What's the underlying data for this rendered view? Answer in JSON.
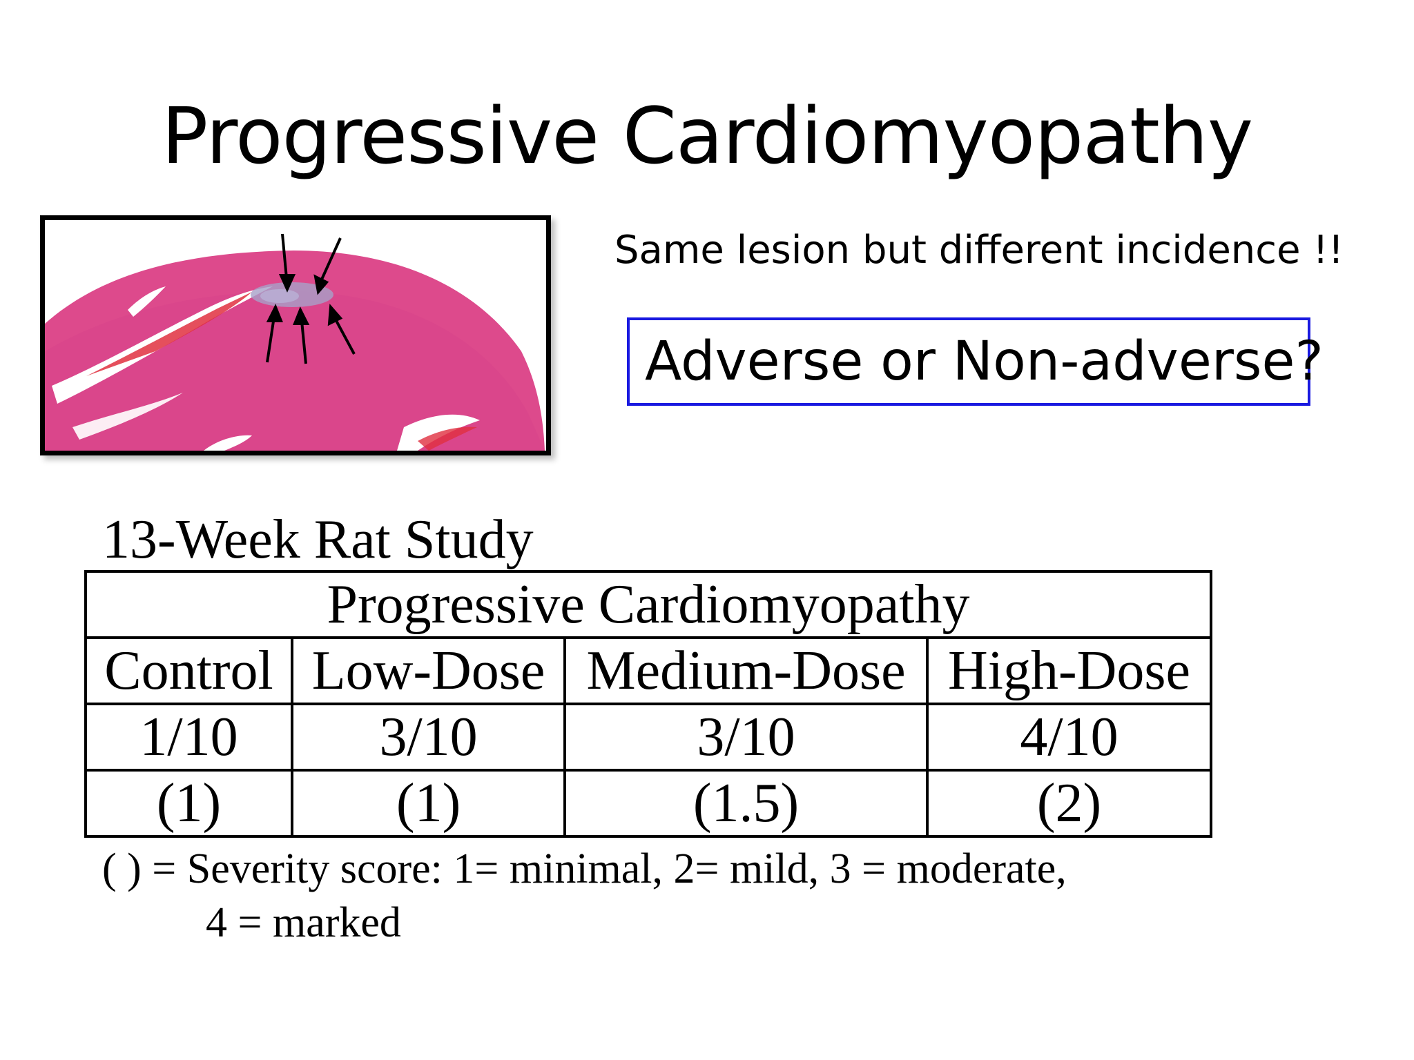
{
  "slide": {
    "title": "Progressive Cardiomyopathy",
    "subtitle": "Same lesion but different incidence !!",
    "question": "Adverse or Non-adverse?"
  },
  "figure": {
    "colors": {
      "tissue": "#dd4a8c",
      "tissue_dark": "#c93a7c",
      "hemorrhage": "#e03040",
      "lesion": "#a8a0c8"
    },
    "icons": [
      "arrow-icon"
    ]
  },
  "study": {
    "title": "13-Week Rat Study",
    "table": {
      "header": "Progressive Cardiomyopathy",
      "columns": [
        "Control",
        "Low-Dose",
        "Medium-Dose",
        "High-Dose"
      ],
      "incidence": [
        "1/10",
        "3/10",
        "3/10",
        "4/10"
      ],
      "severity": [
        "(1)",
        "(1)",
        "(1.5)",
        "(2)"
      ]
    },
    "footnote_line1": "( ) = Severity score: 1= minimal, 2= mild, 3 = moderate,",
    "footnote_line2": "4 = marked"
  }
}
